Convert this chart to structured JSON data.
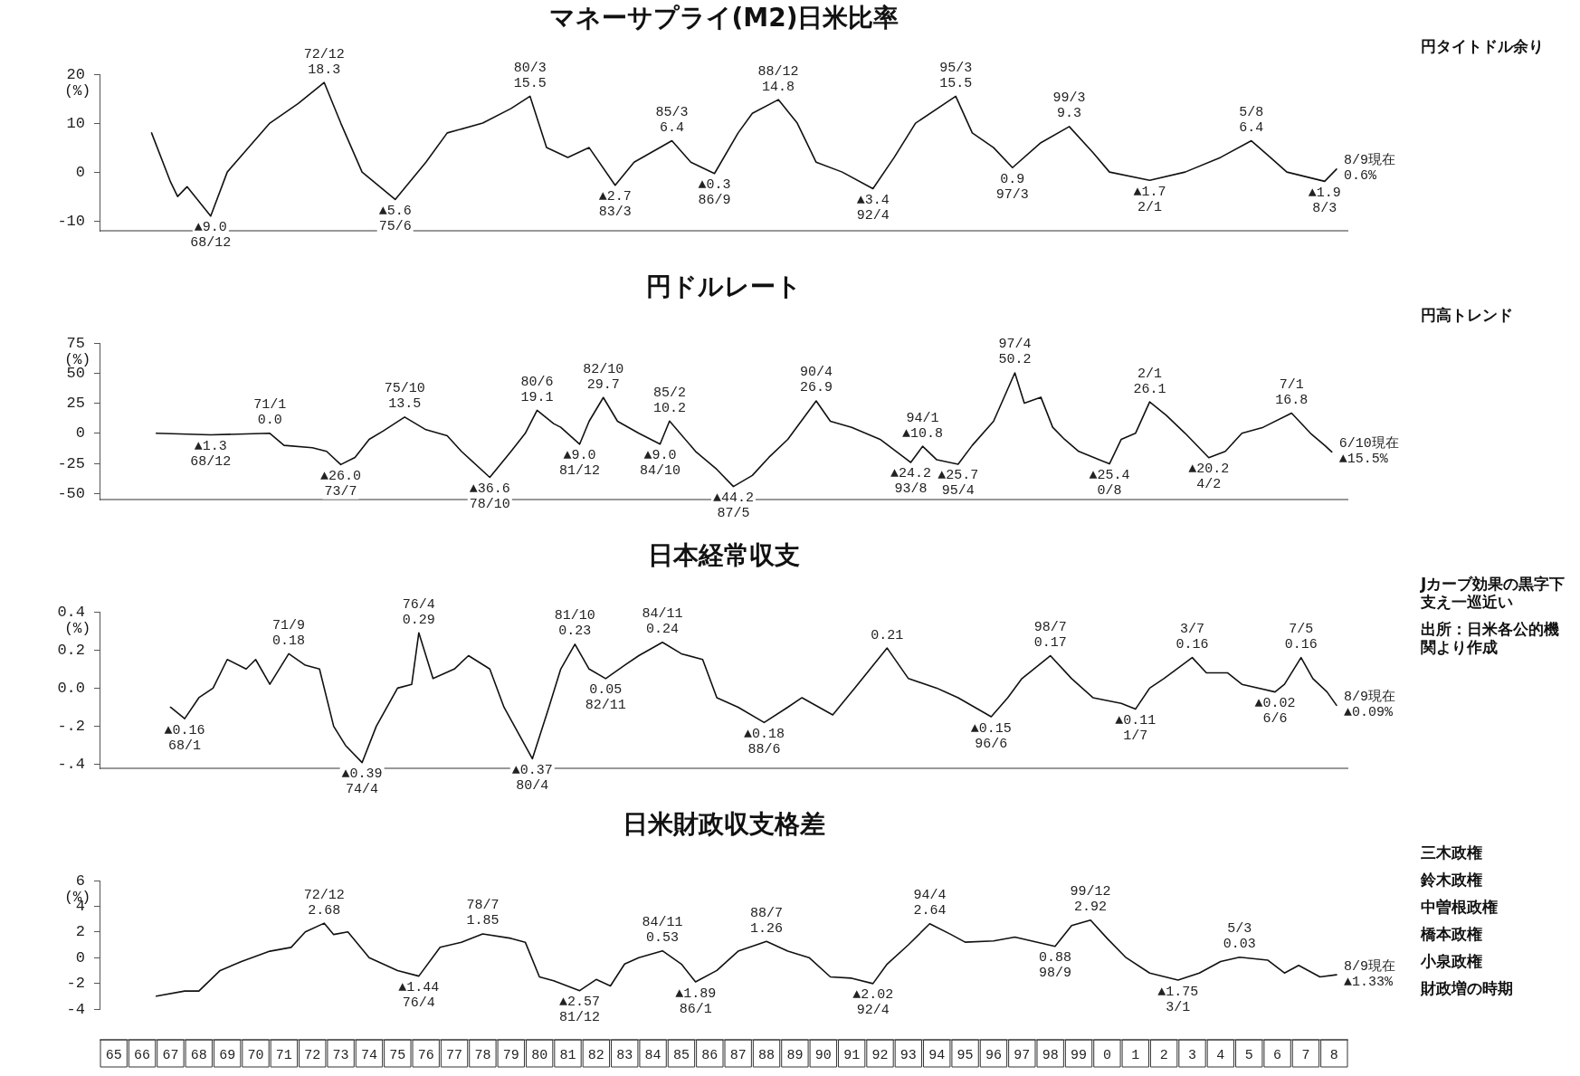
{
  "chart_data": [
    {
      "type": "line",
      "title": "マネーサプライ(M2)日米比率",
      "ylabel": "(%)",
      "xlim": [
        "1965-01",
        "2009-01"
      ],
      "ylim": [
        -12,
        20
      ],
      "yticks": [
        -10,
        0,
        10,
        20
      ],
      "tick_labels": "y",
      "x": [
        "1966-11",
        "1967-07",
        "1967-10",
        "1968-02",
        "1968-12",
        "1969-07",
        "1970-04",
        "1971-01",
        "1972-01",
        "1972-12",
        "1973-07",
        "1974-04",
        "1975-06",
        "1976-07",
        "1977-04",
        "1978-07",
        "1979-07",
        "1980-03",
        "1980-10",
        "1981-07",
        "1982-04",
        "1983-03",
        "1983-11",
        "1985-03",
        "1985-11",
        "1986-09",
        "1987-07",
        "1988-01",
        "1988-12",
        "1989-08",
        "1990-04",
        "1991-03",
        "1992-04",
        "1993-01",
        "1993-10",
        "1995-03",
        "1995-10",
        "1996-07",
        "1997-03",
        "1998-03",
        "1999-03",
        "2000-01",
        "2000-08",
        "2002-01",
        "2003-04",
        "2004-07",
        "2005-08",
        "2006-04",
        "2006-11",
        "2008-03",
        "2008-08"
      ],
      "series": [
        {
          "color": "#111111",
          "values": [
            8,
            -2,
            -5,
            -3,
            -9.0,
            0,
            5,
            10,
            14,
            18.3,
            10,
            0,
            -5.6,
            2,
            8,
            10,
            13,
            15.5,
            5,
            3,
            5,
            -2.7,
            2,
            6.4,
            2,
            -0.3,
            8,
            12,
            14.8,
            10,
            2,
            0,
            -3.4,
            3,
            10,
            15.5,
            8,
            5,
            0.9,
            6,
            9.3,
            4,
            0,
            -1.7,
            0,
            3,
            6.4,
            3,
            0,
            -1.9,
            0.6
          ]
        }
      ],
      "annotations": [
        {
          "text": "▲9.0\n68/12",
          "x": "1968-12",
          "y": -9.0
        },
        {
          "text": "72/12\n18.3",
          "x": "1972-12",
          "y": 18.3
        },
        {
          "text": "▲5.6\n75/6",
          "x": "1975-06",
          "y": -5.6
        },
        {
          "text": "80/3\n15.5",
          "x": "1980-03",
          "y": 15.5
        },
        {
          "text": "▲2.7\n83/3",
          "x": "1983-03",
          "y": -2.7
        },
        {
          "text": "85/3\n6.4",
          "x": "1985-03",
          "y": 6.4
        },
        {
          "text": "▲0.3\n86/9",
          "x": "1986-09",
          "y": -0.3
        },
        {
          "text": "88/12\n14.8",
          "x": "1988-12",
          "y": 14.8
        },
        {
          "text": "▲3.4\n92/4",
          "x": "1992-04",
          "y": -3.4
        },
        {
          "text": "95/3\n15.5",
          "x": "1995-03",
          "y": 15.5
        },
        {
          "text": "0.9\n97/3",
          "x": "1997-03",
          "y": 0.9
        },
        {
          "text": "99/3\n9.3",
          "x": "1999-03",
          "y": 9.3
        },
        {
          "text": "▲1.7\n2/1",
          "x": "2002-01",
          "y": -1.7
        },
        {
          "text": "5/8\n6.4",
          "x": "2005-08",
          "y": 6.4
        },
        {
          "text": "▲1.9\n8/3",
          "x": "2008-03",
          "y": -1.9
        },
        {
          "text": "8/9現在\n0.6%",
          "x": "2008-08",
          "y": 0.6
        },
        "円タイトドル余り"
      ]
    },
    {
      "type": "line",
      "title": "円ドルレート",
      "ylabel": "(%)",
      "xlim": [
        "1965-01",
        "2009-01"
      ],
      "ylim": [
        -55,
        75
      ],
      "yticks": [
        -50,
        -25,
        0,
        25,
        50,
        75
      ],
      "tick_labels": "y",
      "x": [
        "1967-01",
        "1968-12",
        "1971-01",
        "1971-07",
        "1972-07",
        "1973-01",
        "1973-07",
        "1974-01",
        "1974-07",
        "1975-01",
        "1975-10",
        "1976-07",
        "1977-04",
        "1977-10",
        "1978-10",
        "1979-07",
        "1980-01",
        "1980-06",
        "1981-01",
        "1981-04",
        "1981-12",
        "1982-04",
        "1982-10",
        "1983-04",
        "1984-01",
        "1984-10",
        "1985-02",
        "1986-01",
        "1986-10",
        "1987-05",
        "1988-01",
        "1988-08",
        "1989-04",
        "1990-04",
        "1990-10",
        "1991-07",
        "1992-07",
        "1993-08",
        "1994-01",
        "1994-07",
        "1995-04",
        "1995-10",
        "1996-07",
        "1997-04",
        "1997-08",
        "1998-03",
        "1998-08",
        "1999-01",
        "1999-07",
        "2000-08",
        "2001-01",
        "2001-07",
        "2002-01",
        "2002-08",
        "2003-04",
        "2004-02",
        "2004-09",
        "2005-04",
        "2006-01",
        "2007-01",
        "2007-09",
        "2008-03",
        "2008-06"
      ],
      "series": [
        {
          "color": "#111111",
          "values": [
            0,
            -1.3,
            0,
            -10,
            -12,
            -15,
            -26.0,
            -20,
            -5,
            2,
            13.5,
            3,
            -2,
            -15,
            -36.6,
            -15,
            0,
            19.1,
            8,
            5,
            -9.0,
            10,
            29.7,
            10,
            0,
            -9.0,
            10.2,
            -15,
            -30,
            -44.2,
            -35,
            -20,
            -5,
            26.9,
            10,
            5,
            -5,
            -24.2,
            -10.8,
            -22,
            -25.7,
            -10,
            10,
            50.2,
            25,
            30,
            5,
            -5,
            -15,
            -25.4,
            -5,
            0,
            26.1,
            15,
            0,
            -20.2,
            -15,
            0,
            5,
            16.8,
            0,
            -10,
            -15.5
          ]
        }
      ],
      "annotations": [
        {
          "text": "▲1.3\n68/12",
          "x": "1968-12",
          "y": -1.3
        },
        {
          "text": "71/1\n0.0",
          "x": "1971-01",
          "y": 0
        },
        {
          "text": "▲26.0\n73/7",
          "x": "1973-07",
          "y": -26.0
        },
        {
          "text": "75/10\n13.5",
          "x": "1975-10",
          "y": 13.5
        },
        {
          "text": "▲36.6\n78/10",
          "x": "1978-10",
          "y": -36.6
        },
        {
          "text": "80/6\n19.1",
          "x": "1980-06",
          "y": 19.1
        },
        {
          "text": "▲9.0\n81/12",
          "x": "1981-12",
          "y": -9.0
        },
        {
          "text": "82/10\n29.7",
          "x": "1982-10",
          "y": 29.7
        },
        {
          "text": "▲9.0\n84/10",
          "x": "1984-10",
          "y": -9.0
        },
        {
          "text": "85/2\n10.2",
          "x": "1985-02",
          "y": 10.2
        },
        {
          "text": "▲44.2\n87/5",
          "x": "1987-05",
          "y": -44.2
        },
        {
          "text": "90/4\n26.9",
          "x": "1990-04",
          "y": 26.9
        },
        {
          "text": "▲24.2\n93/8",
          "x": "1993-08",
          "y": -24.2
        },
        {
          "text": "94/1\n▲10.8",
          "x": "1994-01",
          "y": -10.8
        },
        {
          "text": "▲25.7\n95/4",
          "x": "1995-04",
          "y": -25.7
        },
        {
          "text": "97/4\n50.2",
          "x": "1997-04",
          "y": 50.2
        },
        {
          "text": "▲25.4\n0/8",
          "x": "2000-08",
          "y": -25.4
        },
        {
          "text": "2/1\n26.1",
          "x": "2002-01",
          "y": 26.1
        },
        {
          "text": "▲20.2\n4/2",
          "x": "2004-02",
          "y": -20.2
        },
        {
          "text": "7/1\n16.8",
          "x": "2007-01",
          "y": 16.8
        },
        {
          "text": "6/10現在\n▲15.5%",
          "x": "2008-06",
          "y": -15.5
        },
        "円高トレンド"
      ]
    },
    {
      "type": "line",
      "title": "日本経常収支",
      "ylabel": "(%)",
      "xlim": [
        "1965-01",
        "2009-01"
      ],
      "ylim": [
        -0.42,
        0.4
      ],
      "yticks": [
        {
          "value": -0.4,
          "label": "-.4"
        },
        {
          "value": -0.2,
          "label": "-.2"
        },
        {
          "value": 0,
          "label": "0.0"
        },
        0.2,
        0.4
      ],
      "tick_labels": "y",
      "x": [
        "1967-07",
        "1968-01",
        "1968-07",
        "1969-01",
        "1969-07",
        "1970-03",
        "1970-07",
        "1971-01",
        "1971-09",
        "1972-04",
        "1972-10",
        "1973-04",
        "1973-09",
        "1974-04",
        "1974-10",
        "1975-07",
        "1976-01",
        "1976-04",
        "1976-10",
        "1977-07",
        "1978-01",
        "1978-10",
        "1979-04",
        "1980-04",
        "1980-11",
        "1981-04",
        "1981-10",
        "1982-04",
        "1982-11",
        "1983-07",
        "1984-01",
        "1984-11",
        "1985-07",
        "1986-04",
        "1986-10",
        "1987-07",
        "1988-06",
        "1989-04",
        "1989-10",
        "1990-11",
        "1991-07",
        "1992-10",
        "1993-07",
        "1994-07",
        "1995-04",
        "1996-06",
        "1997-01",
        "1997-07",
        "1998-07",
        "1999-04",
        "2000-01",
        "2001-01",
        "2001-07",
        "2002-01",
        "2002-07",
        "2003-07",
        "2004-01",
        "2004-10",
        "2005-04",
        "2006-06",
        "2006-10",
        "2007-05",
        "2007-10",
        "2008-04",
        "2008-08"
      ],
      "series": [
        {
          "color": "#111111",
          "values": [
            -0.1,
            -0.16,
            -0.05,
            0.0,
            0.15,
            0.1,
            0.15,
            0.02,
            0.18,
            0.12,
            0.1,
            -0.2,
            -0.3,
            -0.39,
            -0.2,
            0.0,
            0.02,
            0.29,
            0.05,
            0.1,
            0.17,
            0.1,
            -0.1,
            -0.37,
            -0.1,
            0.1,
            0.23,
            0.1,
            0.05,
            0.12,
            0.17,
            0.24,
            0.18,
            0.15,
            -0.05,
            -0.1,
            -0.18,
            -0.1,
            -0.05,
            -0.14,
            -0.02,
            0.21,
            0.05,
            0.0,
            -0.05,
            -0.15,
            -0.05,
            0.05,
            0.17,
            0.05,
            -0.05,
            -0.08,
            -0.11,
            0.0,
            0.05,
            0.16,
            0.08,
            0.08,
            0.02,
            -0.02,
            0.02,
            0.16,
            0.05,
            -0.02,
            -0.09
          ]
        }
      ],
      "annotations": [
        {
          "text": "▲0.16\n68/1",
          "x": "1968-01",
          "y": -0.16
        },
        {
          "text": "71/9\n0.18",
          "x": "1971-09",
          "y": 0.18
        },
        {
          "text": "▲0.39\n74/4",
          "x": "1974-04",
          "y": -0.39
        },
        {
          "text": "76/4\n0.29",
          "x": "1976-04",
          "y": 0.29
        },
        {
          "text": "▲0.37\n80/4",
          "x": "1980-04",
          "y": -0.37
        },
        {
          "text": "81/10\n0.23",
          "x": "1981-10",
          "y": 0.23
        },
        {
          "text": "0.05\n82/11",
          "x": "1982-11",
          "y": 0.05
        },
        {
          "text": "84/11\n0.24",
          "x": "1984-11",
          "y": 0.24
        },
        {
          "text": "▲0.18\n88/6",
          "x": "1988-06",
          "y": -0.18
        },
        {
          "text": "0.21",
          "x": "1992-10",
          "y": 0.21
        },
        {
          "text": "▲0.15\n96/6",
          "x": "1996-06",
          "y": -0.15
        },
        {
          "text": "98/7\n0.17",
          "x": "1998-07",
          "y": 0.17
        },
        {
          "text": "▲0.11\n1/7",
          "x": "2001-07",
          "y": -0.11
        },
        {
          "text": "3/7\n0.16",
          "x": "2003-07",
          "y": 0.16
        },
        {
          "text": "▲0.02\n6/6",
          "x": "2006-06",
          "y": -0.02
        },
        {
          "text": "7/5\n0.16",
          "x": "2007-05",
          "y": 0.16
        },
        {
          "text": "8/9現在\n▲0.09%",
          "x": "2008-08",
          "y": -0.09
        },
        "Jカーブ効果の黒字下支え一巡近い",
        "出所：日米各公的機関より作成"
      ]
    },
    {
      "type": "line",
      "title": "日米財政収支格差",
      "ylabel": "(%)",
      "xlim": [
        "1965-01",
        "2009-01"
      ],
      "ylim": [
        -4,
        6
      ],
      "yticks": [
        -4,
        -2,
        0,
        2,
        4,
        6
      ],
      "xticks": [
        {
          "value": "1965-07",
          "label": "65"
        },
        {
          "value": "1966-07",
          "label": "66"
        },
        {
          "value": "1967-07",
          "label": "67"
        },
        {
          "value": "1968-07",
          "label": "68"
        },
        {
          "value": "1969-07",
          "label": "69"
        },
        {
          "value": "1970-07",
          "label": "70"
        },
        {
          "value": "1971-07",
          "label": "71"
        },
        {
          "value": "1972-07",
          "label": "72"
        },
        {
          "value": "1973-07",
          "label": "73"
        },
        {
          "value": "1974-07",
          "label": "74"
        },
        {
          "value": "1975-07",
          "label": "75"
        },
        {
          "value": "1976-07",
          "label": "76"
        },
        {
          "value": "1977-07",
          "label": "77"
        },
        {
          "value": "1978-07",
          "label": "78"
        },
        {
          "value": "1979-07",
          "label": "79"
        },
        {
          "value": "1980-07",
          "label": "80"
        },
        {
          "value": "1981-07",
          "label": "81"
        },
        {
          "value": "1982-07",
          "label": "82"
        },
        {
          "value": "1983-07",
          "label": "83"
        },
        {
          "value": "1984-07",
          "label": "84"
        },
        {
          "value": "1985-07",
          "label": "85"
        },
        {
          "value": "1986-07",
          "label": "86"
        },
        {
          "value": "1987-07",
          "label": "87"
        },
        {
          "value": "1988-07",
          "label": "88"
        },
        {
          "value": "1989-07",
          "label": "89"
        },
        {
          "value": "1990-07",
          "label": "90"
        },
        {
          "value": "1991-07",
          "label": "91"
        },
        {
          "value": "1992-07",
          "label": "92"
        },
        {
          "value": "1993-07",
          "label": "93"
        },
        {
          "value": "1994-07",
          "label": "94"
        },
        {
          "value": "1995-07",
          "label": "95"
        },
        {
          "value": "1996-07",
          "label": "96"
        },
        {
          "value": "1997-07",
          "label": "97"
        },
        {
          "value": "1998-07",
          "label": "98"
        },
        {
          "value": "1999-07",
          "label": "99"
        },
        {
          "value": "2000-07",
          "label": "0"
        },
        {
          "value": "2001-07",
          "label": "1"
        },
        {
          "value": "2002-07",
          "label": "2"
        },
        {
          "value": "2003-07",
          "label": "3"
        },
        {
          "value": "2004-07",
          "label": "4"
        },
        {
          "value": "2005-07",
          "label": "5"
        },
        {
          "value": "2006-07",
          "label": "6"
        },
        {
          "value": "2007-07",
          "label": "7"
        },
        {
          "value": "2008-07",
          "label": "8"
        }
      ],
      "x": [
        "1967-01",
        "1968-01",
        "1968-07",
        "1969-04",
        "1970-01",
        "1971-01",
        "1971-10",
        "1972-04",
        "1972-12",
        "1973-04",
        "1973-10",
        "1974-07",
        "1975-07",
        "1976-04",
        "1977-01",
        "1977-10",
        "1978-07",
        "1979-07",
        "1980-01",
        "1980-07",
        "1981-01",
        "1981-12",
        "1982-07",
        "1983-01",
        "1983-07",
        "1984-01",
        "1984-11",
        "1985-07",
        "1986-01",
        "1986-10",
        "1987-07",
        "1988-07",
        "1989-04",
        "1990-01",
        "1990-10",
        "1991-07",
        "1992-04",
        "1992-10",
        "1993-07",
        "1994-04",
        "1995-01",
        "1995-07",
        "1996-07",
        "1997-04",
        "1998-09",
        "1999-04",
        "1999-12",
        "2000-07",
        "2001-03",
        "2002-01",
        "2003-01",
        "2003-10",
        "2004-07",
        "2005-03",
        "2006-03",
        "2006-10",
        "2007-04",
        "2008-01",
        "2008-08"
      ],
      "series": [
        {
          "color": "#111111",
          "values": [
            -3.0,
            -2.6,
            -2.6,
            -1,
            -0.3,
            0.5,
            0.8,
            2,
            2.68,
            1.8,
            2.0,
            0,
            -1.0,
            -1.44,
            0.8,
            1.2,
            1.85,
            1.5,
            1.2,
            -1.5,
            -1.8,
            -2.57,
            -1.7,
            -2.2,
            -0.5,
            0,
            0.53,
            -0.5,
            -1.89,
            -1.0,
            0.5,
            1.26,
            0.5,
            0.0,
            -1.5,
            -1.6,
            -2.02,
            -0.5,
            1.0,
            2.64,
            1.8,
            1.2,
            1.3,
            1.6,
            0.88,
            2.5,
            2.92,
            1.5,
            0,
            -1.2,
            -1.75,
            -1.2,
            -0.3,
            0.03,
            -0.2,
            -1.2,
            -0.6,
            -1.5,
            -1.33
          ]
        }
      ],
      "annotations": [
        {
          "text": "72/12\n2.68",
          "x": "1972-12",
          "y": 2.68
        },
        {
          "text": "▲1.44\n76/4",
          "x": "1976-04",
          "y": -1.44
        },
        {
          "text": "78/7\n1.85",
          "x": "1978-07",
          "y": 1.85
        },
        {
          "text": "▲2.57\n81/12",
          "x": "1981-12",
          "y": -2.57
        },
        {
          "text": "84/11\n0.53",
          "x": "1984-11",
          "y": 0.53
        },
        {
          "text": "▲1.89\n86/1",
          "x": "1986-01",
          "y": -1.89
        },
        {
          "text": "88/7\n1.26",
          "x": "1988-07",
          "y": 1.26
        },
        {
          "text": "▲2.02\n92/4",
          "x": "1992-04",
          "y": -2.02
        },
        {
          "text": "94/4\n2.64",
          "x": "1994-04",
          "y": 2.64
        },
        {
          "text": "0.88\n98/9",
          "x": "1998-09",
          "y": 0.88
        },
        {
          "text": "99/12\n2.92",
          "x": "1999-12",
          "y": 2.92
        },
        {
          "text": "▲1.75\n3/1",
          "x": "2003-01",
          "y": -1.75
        },
        {
          "text": "5/3\n0.03",
          "x": "2005-03",
          "y": 0.03
        },
        {
          "text": "8/9現在\n▲1.33%",
          "x": "2008-08",
          "y": -1.33
        },
        "三木政権",
        "鈴木政権",
        "中曽根政権",
        "橋本政権",
        "小泉政権",
        "財政増の時期"
      ]
    }
  ]
}
